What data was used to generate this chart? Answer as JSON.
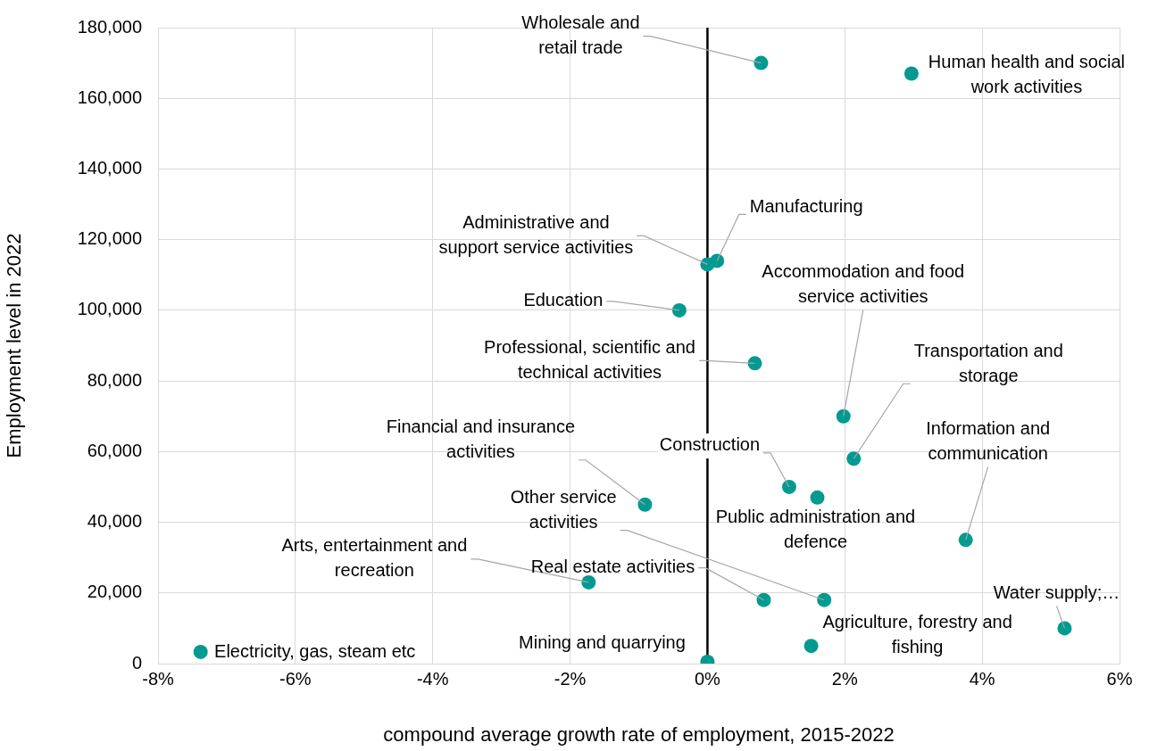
{
  "chart_data": {
    "type": "scatter",
    "xlabel": "compound average growth rate of employment, 2015-2022",
    "ylabel": "Employment level in 2022",
    "xlim": [
      -8,
      6
    ],
    "xticks": [
      {
        "value": -8,
        "label": "-8%"
      },
      {
        "value": -6,
        "label": "-6%"
      },
      {
        "value": -4,
        "label": "-4%"
      },
      {
        "value": -2,
        "label": "-2%"
      },
      {
        "value": 0,
        "label": "0%"
      },
      {
        "value": 2,
        "label": "2%"
      },
      {
        "value": 4,
        "label": "4%"
      },
      {
        "value": 6,
        "label": "6%"
      }
    ],
    "ylim": [
      0,
      180000
    ],
    "yticks": [
      {
        "value": 0,
        "label": "0"
      },
      {
        "value": 20000,
        "label": "20,000"
      },
      {
        "value": 40000,
        "label": "40,000"
      },
      {
        "value": 60000,
        "label": "60,000"
      },
      {
        "value": 80000,
        "label": "80,000"
      },
      {
        "value": 100000,
        "label": "100,000"
      },
      {
        "value": 120000,
        "label": "120,000"
      },
      {
        "value": 140000,
        "label": "140,000"
      },
      {
        "value": 160000,
        "label": "160,000"
      },
      {
        "value": 180000,
        "label": "180,000"
      }
    ],
    "grid": true,
    "marker": "circle",
    "ref_lines": [
      {
        "axis": "x",
        "value": 0,
        "color": "#000000"
      }
    ],
    "series": [
      {
        "color": "#009a91",
        "x": [
          0.78,
          2.97,
          0.14,
          0.0,
          1.98,
          -0.41,
          0.69,
          2.13,
          -0.91,
          1.19,
          3.76,
          1.6,
          1.7,
          -1.73,
          0.82,
          5.2,
          1.51,
          -7.38,
          0.0
        ],
        "values": [
          170000,
          167000,
          114000,
          113000,
          70000,
          100000,
          85000,
          58000,
          45000,
          50000,
          35000,
          47000,
          18000,
          23000,
          18000,
          10000,
          5000,
          3300,
          500
        ]
      }
    ],
    "annotations": [
      {
        "text": "Wholesale and retail trade",
        "x": 0.78,
        "y": 170000
      },
      {
        "text": "Human health and social work activities",
        "x": 2.97,
        "y": 167000
      },
      {
        "text": "Manufacturing",
        "x": 0.14,
        "y": 114000
      },
      {
        "text": "Administrative and support service activities",
        "x": 0.0,
        "y": 113000
      },
      {
        "text": "Accommodation and food service activities",
        "x": 1.98,
        "y": 70000
      },
      {
        "text": "Education",
        "x": -0.41,
        "y": 100000
      },
      {
        "text": "Professional, scientific and technical activities",
        "x": 0.69,
        "y": 85000
      },
      {
        "text": "Transportation and storage",
        "x": 2.13,
        "y": 58000
      },
      {
        "text": "Financial and insurance activities",
        "x": -0.91,
        "y": 45000
      },
      {
        "text": "Construction",
        "x": 1.19,
        "y": 50000
      },
      {
        "text": "Information and communication",
        "x": 3.76,
        "y": 35000
      },
      {
        "text": "Public administration and defence",
        "x": 1.6,
        "y": 47000
      },
      {
        "text": "Other service activities",
        "x": 1.7,
        "y": 18000
      },
      {
        "text": "Arts, entertainment and recreation",
        "x": -1.73,
        "y": 23000
      },
      {
        "text": "Real estate activities",
        "x": 0.82,
        "y": 18000
      },
      {
        "text": "Water supply;…",
        "x": 5.2,
        "y": 10000
      },
      {
        "text": "Agriculture, forestry and fishing",
        "x": 1.51,
        "y": 5000
      },
      {
        "text": "Electricity, gas, steam etc",
        "x": -7.38,
        "y": 3300
      },
      {
        "text": "Mining and quarrying",
        "x": 0.0,
        "y": 500
      }
    ]
  }
}
